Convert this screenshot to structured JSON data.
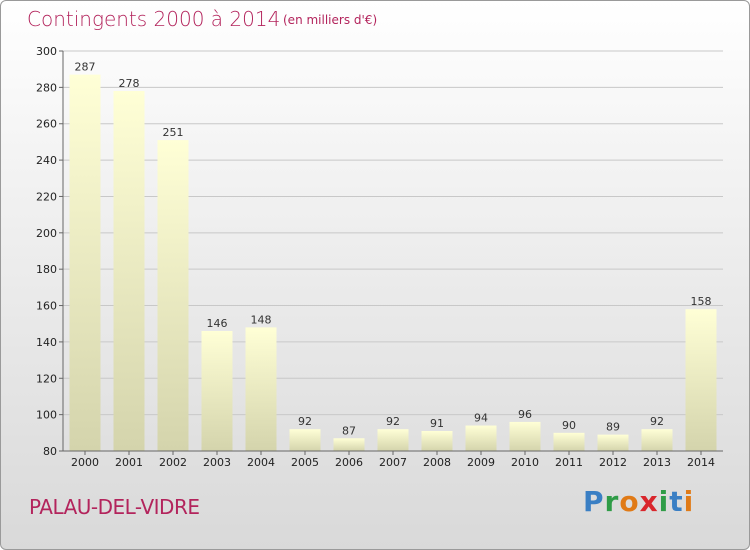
{
  "chart_data": {
    "type": "bar",
    "title": "Contingents 2000 à 2014",
    "subtitle": "(en milliers d'€)",
    "categories": [
      "2000",
      "2001",
      "2002",
      "2003",
      "2004",
      "2005",
      "2006",
      "2007",
      "2008",
      "2009",
      "2010",
      "2011",
      "2012",
      "2013",
      "2014"
    ],
    "values": [
      287,
      278,
      251,
      146,
      148,
      92,
      87,
      92,
      91,
      94,
      96,
      90,
      89,
      92,
      158
    ],
    "ylim": [
      80,
      300
    ],
    "yticks": [
      80,
      100,
      120,
      140,
      160,
      180,
      200,
      220,
      240,
      260,
      280,
      300
    ],
    "grid": true,
    "legend": "none",
    "bar_color_top": "#ffffd6",
    "bar_color_bottom": "#d4d4ac"
  },
  "footer": {
    "place": "PALAU-DEL-VIDRE",
    "logo": [
      "P",
      "r",
      "o",
      "x",
      "i",
      "t",
      "i"
    ]
  },
  "colors": {
    "title": "#b3245c",
    "logo": [
      "#3a7fc4",
      "#2f9c47",
      "#e07a16",
      "#d9262c",
      "#2f9c47",
      "#3a7fc4",
      "#e07a16"
    ]
  }
}
